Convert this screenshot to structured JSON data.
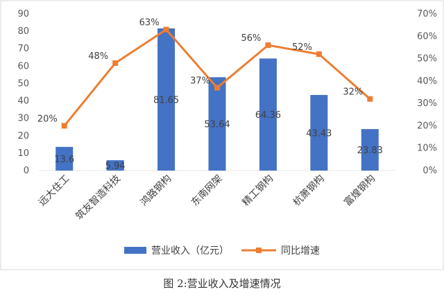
{
  "colors": {
    "bar": "#4472C4",
    "line": "#ED7D31",
    "border": "#D9D9D9",
    "grid": "#E6E6E6"
  },
  "caption": "图 2:营业收入及增速情况",
  "chart_data": {
    "type": "bar",
    "title": "",
    "categories": [
      "远大住工",
      "筑友智造科技",
      "鸿路钢构",
      "东南网架",
      "精工钢构",
      "杭萧钢构",
      "富煌钢构"
    ],
    "series": [
      {
        "name": "营业收入（亿元）",
        "type": "bar",
        "axis": "left",
        "values": [
          13.6,
          5.94,
          81.65,
          53.64,
          64.36,
          43.43,
          23.83
        ],
        "labels": [
          "13.6",
          "5.94",
          "81.65",
          "53.64",
          "64.36",
          "43.43",
          "23.83"
        ]
      },
      {
        "name": "同比增速",
        "type": "line",
        "axis": "right",
        "values": [
          20,
          48,
          63,
          37,
          56,
          52,
          32
        ],
        "labels": [
          "20%",
          "48%",
          "63%",
          "37%",
          "56%",
          "52%",
          "32%"
        ]
      }
    ],
    "y_left": {
      "range": [
        0,
        90
      ],
      "ticks": [
        "0",
        "10",
        "20",
        "30",
        "40",
        "50",
        "60",
        "70",
        "80",
        "90"
      ]
    },
    "y_right": {
      "range": [
        0,
        70
      ],
      "ticks": [
        "0%",
        "10%",
        "20%",
        "30%",
        "40%",
        "50%",
        "60%",
        "70%"
      ]
    },
    "grid": false,
    "legend": "bottom"
  }
}
